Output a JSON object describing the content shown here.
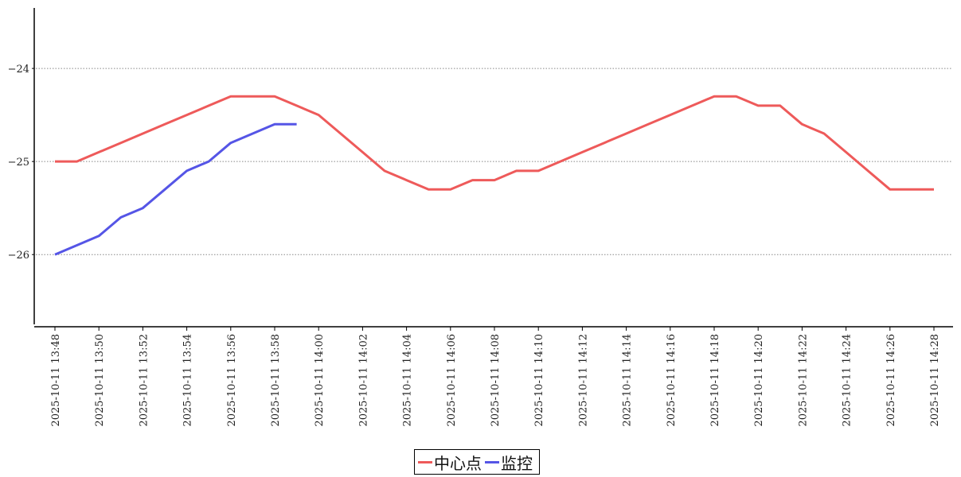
{
  "chart_data": {
    "type": "line",
    "title": "",
    "xlabel": "",
    "ylabel": "",
    "ylim": [
      -26.75,
      -23.35
    ],
    "yticks": [
      -24,
      -25,
      -26
    ],
    "ytick_labels": [
      "−24",
      "−25",
      "−26"
    ],
    "grid": "horizontal dotted",
    "legend_placement": "bottom-center",
    "x_labels": [
      "2025-10-11 13:48",
      "2025-10-11 13:50",
      "2025-10-11 13:52",
      "2025-10-11 13:54",
      "2025-10-11 13:56",
      "2025-10-11 13:58",
      "2025-10-11 14:00",
      "2025-10-11 14:02",
      "2025-10-11 14:04",
      "2025-10-11 14:06",
      "2025-10-11 14:08",
      "2025-10-11 14:10",
      "2025-10-11 14:12",
      "2025-10-11 14:14",
      "2025-10-11 14:16",
      "2025-10-11 14:18",
      "2025-10-11 14:20",
      "2025-10-11 14:22",
      "2025-10-11 14:24",
      "2025-10-11 14:26",
      "2025-10-11 14:28"
    ],
    "series": [
      {
        "name": "中心点",
        "color": "#ee5a5a",
        "points": [
          [
            "2025-10-11 13:48",
            -25.0
          ],
          [
            "2025-10-11 13:49",
            -25.0
          ],
          [
            "2025-10-11 13:50",
            -24.9
          ],
          [
            "2025-10-11 13:51",
            -24.8
          ],
          [
            "2025-10-11 13:52",
            -24.7
          ],
          [
            "2025-10-11 13:53",
            -24.6
          ],
          [
            "2025-10-11 13:54",
            -24.5
          ],
          [
            "2025-10-11 13:55",
            -24.4
          ],
          [
            "2025-10-11 13:56",
            -24.3
          ],
          [
            "2025-10-11 13:57",
            -24.3
          ],
          [
            "2025-10-11 13:58",
            -24.3
          ],
          [
            "2025-10-11 13:59",
            -24.4
          ],
          [
            "2025-10-11 14:00",
            -24.5
          ],
          [
            "2025-10-11 14:01",
            -24.7
          ],
          [
            "2025-10-11 14:02",
            -24.9
          ],
          [
            "2025-10-11 14:03",
            -25.1
          ],
          [
            "2025-10-11 14:04",
            -25.2
          ],
          [
            "2025-10-11 14:05",
            -25.3
          ],
          [
            "2025-10-11 14:06",
            -25.3
          ],
          [
            "2025-10-11 14:07",
            -25.2
          ],
          [
            "2025-10-11 14:08",
            -25.2
          ],
          [
            "2025-10-11 14:09",
            -25.1
          ],
          [
            "2025-10-11 14:10",
            -25.1
          ],
          [
            "2025-10-11 14:11",
            -25.0
          ],
          [
            "2025-10-11 14:12",
            -24.9
          ],
          [
            "2025-10-11 14:13",
            -24.8
          ],
          [
            "2025-10-11 14:14",
            -24.7
          ],
          [
            "2025-10-11 14:15",
            -24.6
          ],
          [
            "2025-10-11 14:16",
            -24.5
          ],
          [
            "2025-10-11 14:17",
            -24.4
          ],
          [
            "2025-10-11 14:18",
            -24.3
          ],
          [
            "2025-10-11 14:19",
            -24.3
          ],
          [
            "2025-10-11 14:20",
            -24.4
          ],
          [
            "2025-10-11 14:21",
            -24.4
          ],
          [
            "2025-10-11 14:22",
            -24.6
          ],
          [
            "2025-10-11 14:23",
            -24.7
          ],
          [
            "2025-10-11 14:24",
            -24.9
          ],
          [
            "2025-10-11 14:25",
            -25.1
          ],
          [
            "2025-10-11 14:26",
            -25.3
          ],
          [
            "2025-10-11 14:27",
            -25.3
          ],
          [
            "2025-10-11 14:28",
            -25.3
          ]
        ]
      },
      {
        "name": "监控",
        "color": "#5555e6",
        "points": [
          [
            "2025-10-11 13:48",
            -26.0
          ],
          [
            "2025-10-11 13:49",
            -25.9
          ],
          [
            "2025-10-11 13:50",
            -25.8
          ],
          [
            "2025-10-11 13:51",
            -25.6
          ],
          [
            "2025-10-11 13:52",
            -25.5
          ],
          [
            "2025-10-11 13:53",
            -25.3
          ],
          [
            "2025-10-11 13:54",
            -25.1
          ],
          [
            "2025-10-11 13:55",
            -25.0
          ],
          [
            "2025-10-11 13:56",
            -24.8
          ],
          [
            "2025-10-11 13:57",
            -24.7
          ],
          [
            "2025-10-11 13:58",
            -24.6
          ],
          [
            "2025-10-11 13:59",
            -24.6
          ]
        ]
      }
    ]
  }
}
